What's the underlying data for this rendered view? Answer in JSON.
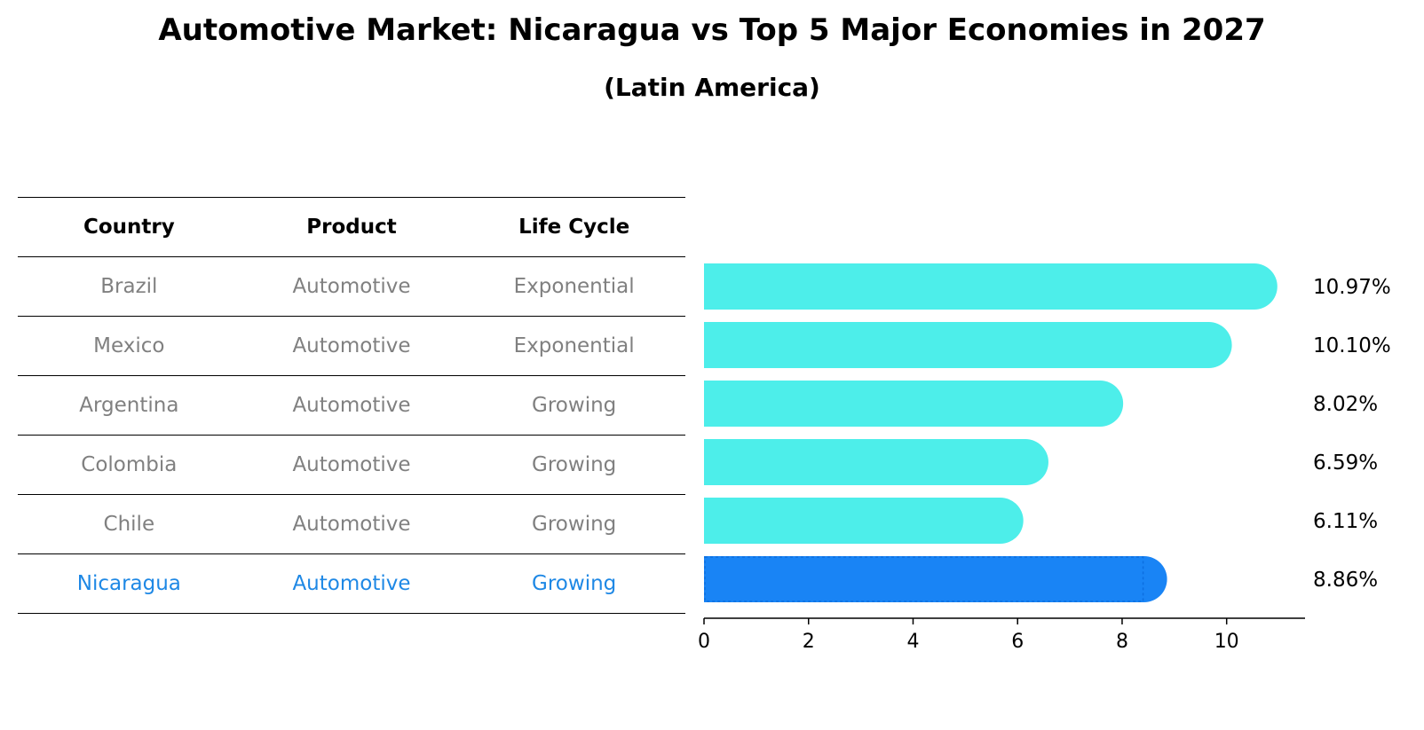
{
  "header": {
    "title": "Automotive Market: Nicaragua vs Top 5 Major Economies in 2027",
    "subtitle": "(Latin America)"
  },
  "table": {
    "columns": [
      "Country",
      "Product",
      "Life Cycle"
    ],
    "rows": [
      {
        "country": "Brazil",
        "product": "Automotive",
        "life_cycle": "Exponential"
      },
      {
        "country": "Mexico",
        "product": "Automotive",
        "life_cycle": "Exponential"
      },
      {
        "country": "Argentina",
        "product": "Automotive",
        "life_cycle": "Growing"
      },
      {
        "country": "Colombia",
        "product": "Automotive",
        "life_cycle": "Growing"
      },
      {
        "country": "Chile",
        "product": "Automotive",
        "life_cycle": "Growing"
      },
      {
        "country": "Nicaragua",
        "product": "Automotive",
        "life_cycle": "Growing"
      }
    ]
  },
  "chart_data": {
    "type": "bar",
    "orientation": "horizontal",
    "categories": [
      "Brazil",
      "Mexico",
      "Argentina",
      "Colombia",
      "Chile",
      "Nicaragua"
    ],
    "values": [
      10.97,
      10.1,
      8.02,
      6.59,
      6.11,
      8.86
    ],
    "value_labels": [
      "10.97%",
      "10.10%",
      "8.02%",
      "6.59%",
      "6.11%",
      "8.86%"
    ],
    "highlight": "Nicaragua",
    "xlim": [
      0,
      11.5
    ],
    "xticks": [
      0,
      2,
      4,
      6,
      8,
      10
    ],
    "title": "Automotive Market: Nicaragua vs Top 5 Major Economies in 2027",
    "subtitle": "(Latin America)",
    "colors": {
      "default": "#4deeea",
      "highlight": "#1984f5"
    }
  },
  "colors": {
    "table_text": "#808080",
    "highlight_text": "#1e88e5"
  }
}
